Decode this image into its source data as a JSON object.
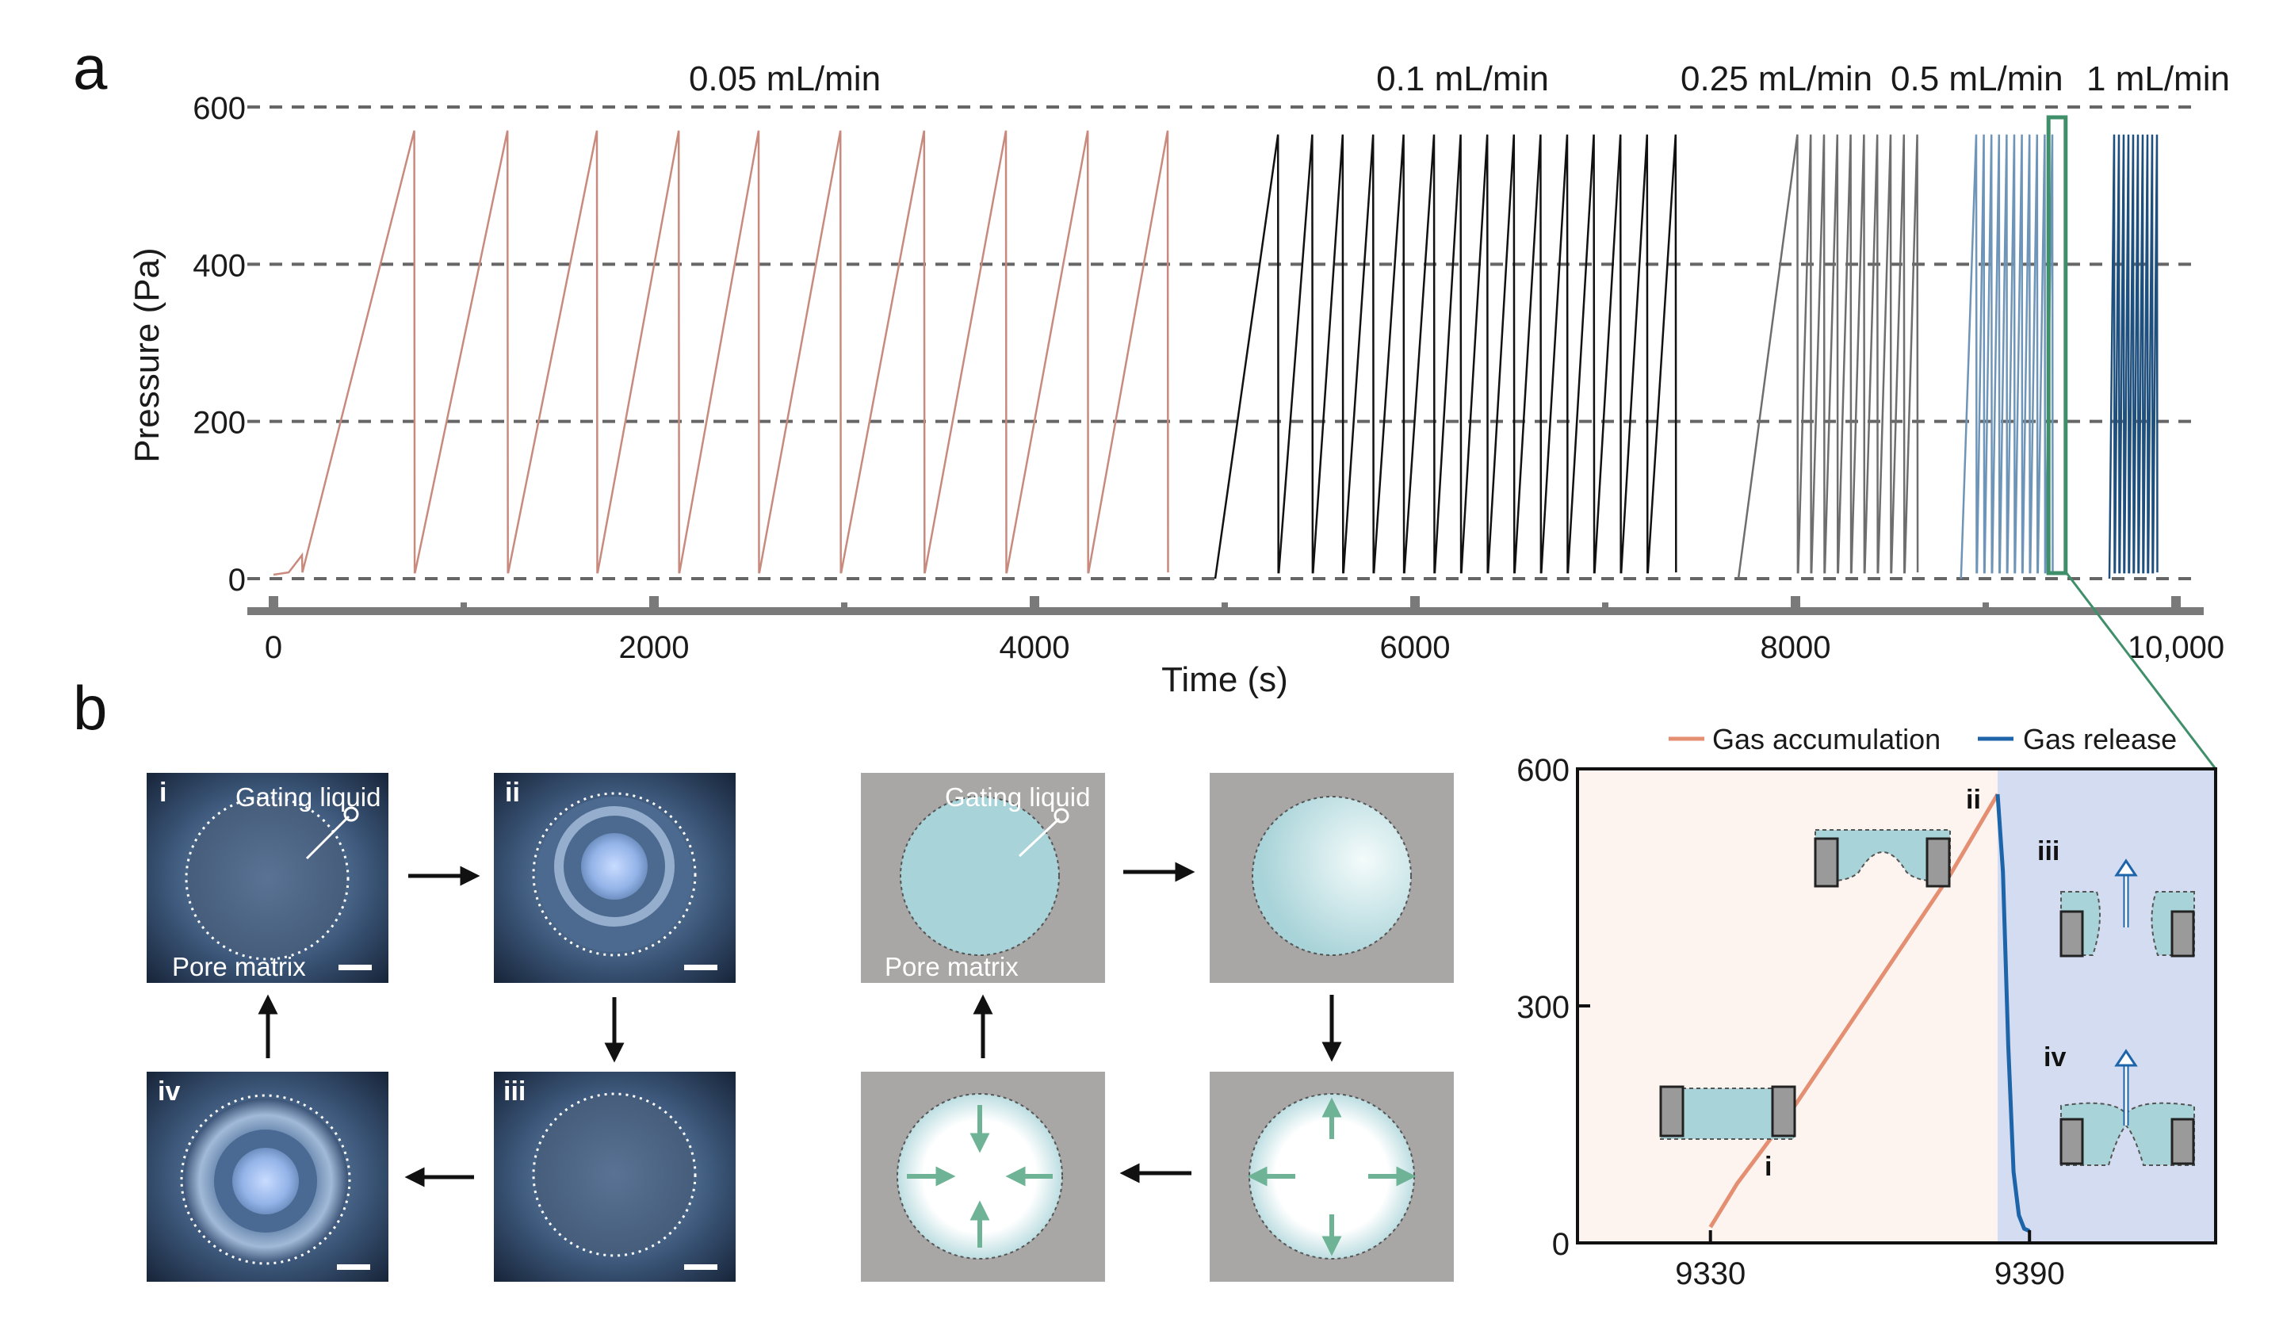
{
  "panel_labels": {
    "a": "a",
    "b": "b"
  },
  "chart_data": [
    {
      "type": "line",
      "y_ticks": [
        "0",
        "200",
        "400",
        "600"
      ],
      "x_ticks": [
        "0",
        "2000",
        "4000",
        "6000",
        "8000",
        "10,000"
      ],
      "xlabel": "Time (s)",
      "ylabel": "Pressure (Pa)",
      "xlim": [
        0,
        10000
      ],
      "ylim": [
        0,
        600
      ],
      "grid": "dashed-horizontal",
      "annotations": [
        "0.05 mL/min",
        "0.1 mL/min",
        "0.25 mL/min",
        "0.5 mL/min",
        "1 mL/min"
      ],
      "series": [
        {
          "color": "#c98a7e",
          "start": 0,
          "peaks": [
            740,
            1230,
            1700,
            2130,
            2550,
            2980,
            3420,
            3850,
            4280,
            4700
          ],
          "peak_value": 570
        },
        {
          "color": "#111111",
          "start": 4950,
          "peaks": [
            5280,
            5460,
            5620,
            5780,
            5940,
            6100,
            6240,
            6380,
            6520,
            6660,
            6800,
            6940,
            7080,
            7220,
            7370
          ],
          "peak_value": 565
        },
        {
          "color": "#6e6e6e",
          "start": 7700,
          "peaks": [
            8010,
            8080,
            8150,
            8220,
            8290,
            8360,
            8430,
            8500,
            8570,
            8640
          ],
          "peak_value": 565
        },
        {
          "color": "#6e95b7",
          "start": 8870,
          "peaks": [
            8950,
            8990,
            9030,
            9070,
            9110,
            9150,
            9190,
            9230,
            9270,
            9310,
            9350
          ],
          "peak_value": 565
        },
        {
          "color": "#1f4f7d",
          "start": 9650,
          "peaks": [
            9675,
            9700,
            9725,
            9750,
            9775,
            9800,
            9825,
            9850,
            9875,
            9900
          ],
          "peak_value": 565
        }
      ],
      "highlight_box": {
        "x": [
          9330,
          9420
        ],
        "y": [
          0,
          600
        ],
        "color": "#3f8f6a"
      }
    },
    {
      "type": "line",
      "legend": [
        "Gas accumulation",
        "Gas release"
      ],
      "legend_placement": "top",
      "y_ticks": [
        "0",
        "300",
        "600"
      ],
      "x_ticks": [
        "9330",
        "9390"
      ],
      "xlim": [
        9305,
        9425
      ],
      "ylim": [
        0,
        600
      ],
      "series": [
        {
          "name": "Gas accumulation",
          "color": "#e48f72",
          "x": [
            9330,
            9335,
            9345,
            9355,
            9365,
            9375,
            9384
          ],
          "y": [
            20,
            75,
            165,
            265,
            365,
            465,
            568
          ]
        },
        {
          "name": "Gas release",
          "color": "#1d64a8",
          "x": [
            9384,
            9385,
            9386,
            9387,
            9388,
            9389,
            9390
          ],
          "y": [
            568,
            470,
            250,
            90,
            35,
            18,
            15
          ]
        }
      ],
      "shading": [
        {
          "x": [
            9305,
            9384
          ],
          "color": "#fdf3ef"
        },
        {
          "x": [
            9384,
            9425
          ],
          "color": "#d3dcf1"
        }
      ],
      "stage_labels": [
        "i",
        "ii",
        "iii",
        "iv"
      ]
    }
  ],
  "micrographs": {
    "stage_labels": [
      "i",
      "ii",
      "iii",
      "iv"
    ],
    "gating_liquid": "Gating liquid",
    "pore_matrix": "Pore matrix"
  },
  "schematics": {
    "gating_liquid": "Gating liquid",
    "pore_matrix": "Pore matrix"
  },
  "colors": {
    "connector": "#3f8f6a",
    "schematic_bg": "#a9a6a6",
    "schematic_fluid": "#a8d3d8",
    "arrow_green": "#6fb397",
    "micro_dark": "#1c2a3c",
    "micro_mid": "#4e6f95"
  }
}
